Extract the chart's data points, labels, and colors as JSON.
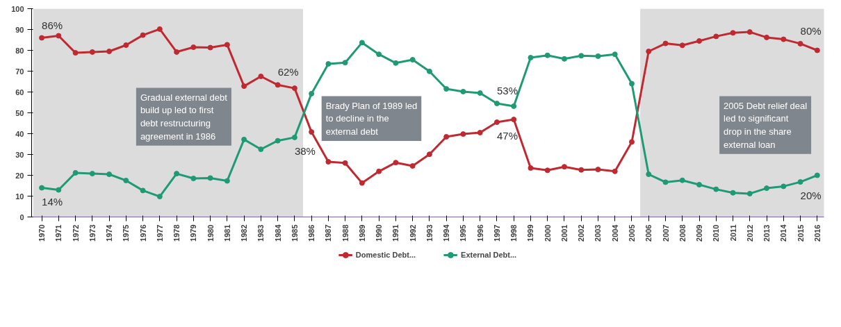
{
  "chart_data": {
    "type": "line",
    "categories": [
      "1970",
      "1971",
      "1972",
      "1973",
      "1974",
      "1975",
      "1976",
      "1977",
      "1978",
      "1979",
      "1980",
      "1981",
      "1982",
      "1983",
      "1984",
      "1985",
      "1986",
      "1987",
      "1988",
      "1989",
      "1990",
      "1991",
      "1992",
      "1993",
      "1994",
      "1995",
      "1996",
      "1997",
      "1998",
      "1999",
      "2000",
      "2001",
      "2002",
      "2003",
      "2004",
      "2005",
      "2006",
      "2007",
      "2008",
      "2009",
      "2010",
      "2011",
      "2012",
      "2013",
      "2014",
      "2015",
      "2016"
    ],
    "series": [
      {
        "name": "Domestic Debt...",
        "color": "#c0292f",
        "values": [
          86,
          87,
          78.8,
          79.2,
          79.5,
          82.5,
          87.3,
          90.2,
          79.2,
          81.5,
          81.3,
          82.7,
          62.8,
          67.5,
          63.4,
          61.8,
          40.8,
          26.5,
          25.9,
          16.3,
          21.9,
          26.1,
          24.5,
          30.1,
          38.5,
          39.8,
          40.5,
          45.5,
          46.8,
          23.5,
          22.4,
          24.1,
          22.6,
          22.8,
          21.9,
          36,
          79.5,
          83.3,
          82.4,
          84.5,
          86.7,
          88.4,
          88.8,
          86.2,
          85.3,
          83.2,
          80
        ]
      },
      {
        "name": "External Debt...",
        "color": "#1e9a74",
        "values": [
          14,
          13,
          21.2,
          20.8,
          20.5,
          17.5,
          12.7,
          9.8,
          20.8,
          18.5,
          18.7,
          17.3,
          37.2,
          32.5,
          36.6,
          38.2,
          59.2,
          73.5,
          74.1,
          83.7,
          78.1,
          73.9,
          75.5,
          69.9,
          61.5,
          60.2,
          59.5,
          54.5,
          53.2,
          76.5,
          77.6,
          75.9,
          77.4,
          77.2,
          78.1,
          64,
          20.5,
          16.7,
          17.6,
          15.5,
          13.3,
          11.6,
          11.2,
          13.8,
          14.7,
          16.8,
          20
        ]
      }
    ],
    "ylim": [
      0,
      100
    ],
    "yticks": [
      0,
      10,
      20,
      30,
      40,
      50,
      60,
      70,
      80,
      90,
      100
    ],
    "grid": false,
    "legend": "bottom",
    "marker": "circle",
    "line_style": "solid",
    "bands": [
      {
        "axis": "x",
        "from": "1970",
        "to": "1985",
        "color": "#dcdcdc"
      },
      {
        "axis": "x",
        "from": "2006",
        "to": "2016",
        "color": "#dcdcdc"
      }
    ],
    "annotations": [
      {
        "text": "86%",
        "x": "1970",
        "y": 86
      },
      {
        "text": "14%",
        "x": "1970",
        "y": 14
      },
      {
        "text": "62%",
        "x": "1984",
        "y": 63.4
      },
      {
        "text": "38%",
        "x": "1985",
        "y": 38.2
      },
      {
        "text": "53%",
        "x": "1997",
        "y": 54.5
      },
      {
        "text": "47%",
        "x": "1997",
        "y": 45.5
      },
      {
        "text": "80%",
        "x": "2015",
        "y": 83.2
      },
      {
        "text": "20%",
        "x": "2015",
        "y": 16.8
      },
      "Gradual external debt build up led to first debt restructuring agreement in 1986",
      "Brady Plan of 1989 led to decline in the external debt",
      "2005 Debt relief deal led to significant drop in the share external loan"
    ]
  }
}
